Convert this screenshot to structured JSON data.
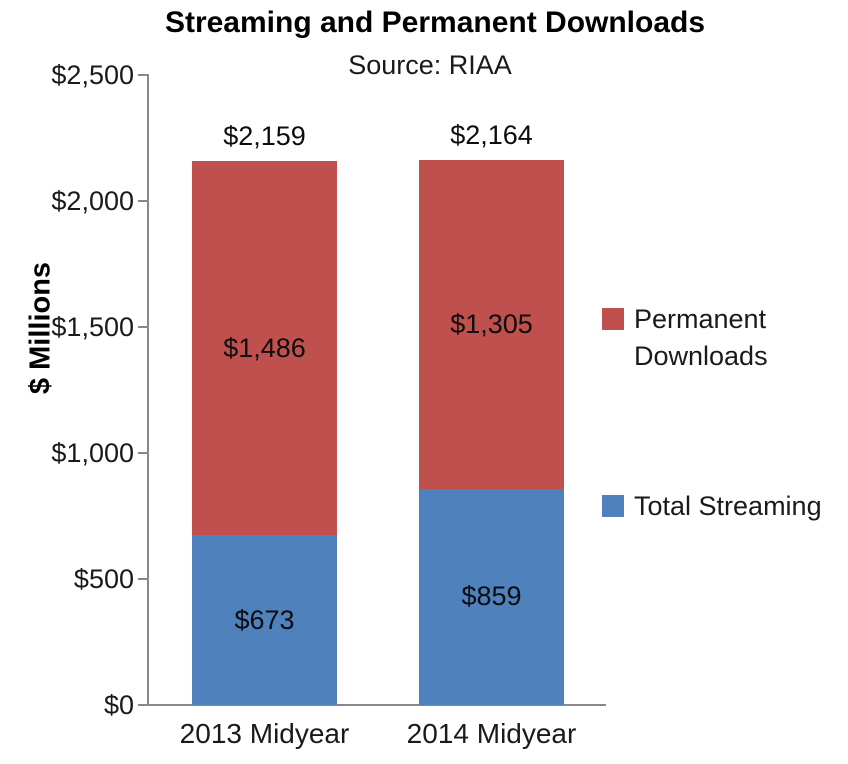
{
  "chart": {
    "title": "Streaming and Permanent Downloads",
    "subtitle": "Source: RIAA",
    "y_axis_label": "$ Millions"
  },
  "chart_data": {
    "type": "bar",
    "stacked": true,
    "title": "Streaming and Permanent Downloads",
    "subtitle": "Source: RIAA",
    "ylabel": "$ Millions",
    "xlabel": "",
    "ylim": [
      0,
      2500
    ],
    "grid": false,
    "legend_position": "right",
    "categories": [
      "2013 Midyear",
      "2014 Midyear"
    ],
    "series": [
      {
        "name": "Total Streaming",
        "color": "#4F81BD",
        "values": [
          673,
          859
        ],
        "labels": [
          "$673",
          "$859"
        ]
      },
      {
        "name": "Permanent Downloads",
        "color": "#C0504D",
        "values": [
          1486,
          1305
        ],
        "labels": [
          "$1,486",
          "$1,305"
        ]
      }
    ],
    "totals": [
      2159,
      2164
    ],
    "total_labels": [
      "$2,159",
      "$2,164"
    ],
    "yticks": [
      {
        "value": 0,
        "label": "$0"
      },
      {
        "value": 500,
        "label": "$500"
      },
      {
        "value": 1000,
        "label": "$1,000"
      },
      {
        "value": 1500,
        "label": "$1,500"
      },
      {
        "value": 2000,
        "label": "$2,000"
      },
      {
        "value": 2500,
        "label": "$2,500"
      }
    ]
  },
  "legend": {
    "items": [
      {
        "label": "Permanent Downloads",
        "lines": [
          "Permanent",
          "Downloads"
        ],
        "color": "#C0504D"
      },
      {
        "label": "Total Streaming",
        "lines": [
          "Total Streaming"
        ],
        "color": "#4F81BD"
      }
    ]
  },
  "colors": {
    "axis": "#898989",
    "streaming_blue": "#4F81BD",
    "downloads_red": "#C0504D",
    "background": "#FFFFFF",
    "text": "#1A1A1A"
  }
}
